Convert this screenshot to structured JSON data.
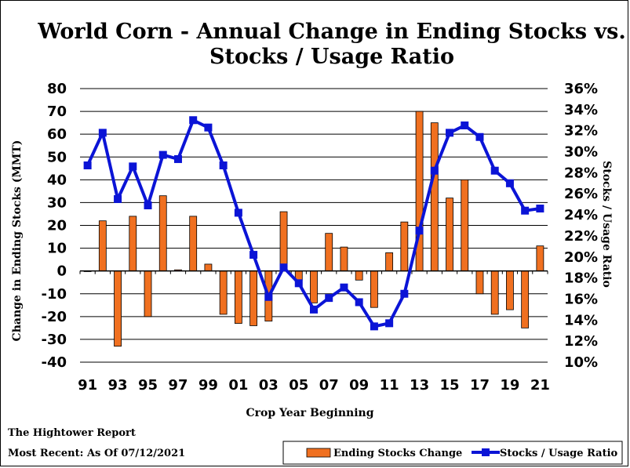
{
  "chart_data": {
    "type": "bar+line",
    "title_line1": "World Corn - Annual Change in Ending Stocks vs.",
    "title_line2": "Stocks / Usage Ratio",
    "xlabel": "Crop Year Beginning",
    "ylabel_left": "Change in Ending Stocks (MMT)",
    "ylabel_right": "Stocks / Usage Ratio",
    "ylim_left": [
      -40,
      80
    ],
    "ylim_right": [
      10,
      36
    ],
    "yticks_left": [
      "80",
      "70",
      "60",
      "50",
      "40",
      "30",
      "20",
      "10",
      "0",
      "-10",
      "-20",
      "-30",
      "-40"
    ],
    "yticks_right": [
      "36%",
      "34%",
      "32%",
      "30%",
      "28%",
      "26%",
      "24%",
      "22%",
      "20%",
      "18%",
      "16%",
      "14%",
      "12%",
      "10%"
    ],
    "xtick_labels": [
      "91",
      "93",
      "95",
      "97",
      "99",
      "01",
      "03",
      "05",
      "07",
      "09",
      "11",
      "13",
      "15",
      "17",
      "19",
      "21"
    ],
    "grid": "horizontal",
    "categories": [
      "91",
      "92",
      "93",
      "94",
      "95",
      "96",
      "97",
      "98",
      "99",
      "00",
      "01",
      "02",
      "03",
      "04",
      "05",
      "06",
      "07",
      "08",
      "09",
      "10",
      "11",
      "12",
      "13",
      "14",
      "15",
      "16",
      "17",
      "18",
      "19",
      "20",
      "21"
    ],
    "series": [
      {
        "name": "Ending Stocks Change",
        "type": "bar",
        "color": "#f07020",
        "values": [
          0,
          22,
          -33,
          24,
          -20,
          33,
          0.5,
          24,
          3,
          -19,
          -23,
          -24,
          -22,
          26,
          -4,
          -14,
          16.5,
          10.5,
          -4,
          -16,
          8,
          21.5,
          70,
          65,
          32,
          40,
          -10,
          -19,
          -17,
          -25,
          11
        ]
      },
      {
        "name": "Stocks / Usage Ratio",
        "type": "line",
        "color": "#0b14d6",
        "values": [
          28.7,
          31.8,
          25.5,
          28.6,
          24.9,
          29.7,
          29.3,
          33.0,
          32.3,
          28.7,
          24.2,
          20.2,
          16.2,
          19.0,
          17.5,
          15.0,
          16.1,
          17.1,
          15.7,
          13.4,
          13.7,
          16.5,
          22.5,
          28.2,
          31.8,
          32.5,
          31.4,
          28.2,
          27.0,
          24.4,
          24.6
        ]
      }
    ],
    "legend_position": "bottom-right"
  },
  "footer": {
    "source": "The Hightower Report",
    "recent": "Most Recent: As Of 07/12/2021"
  }
}
